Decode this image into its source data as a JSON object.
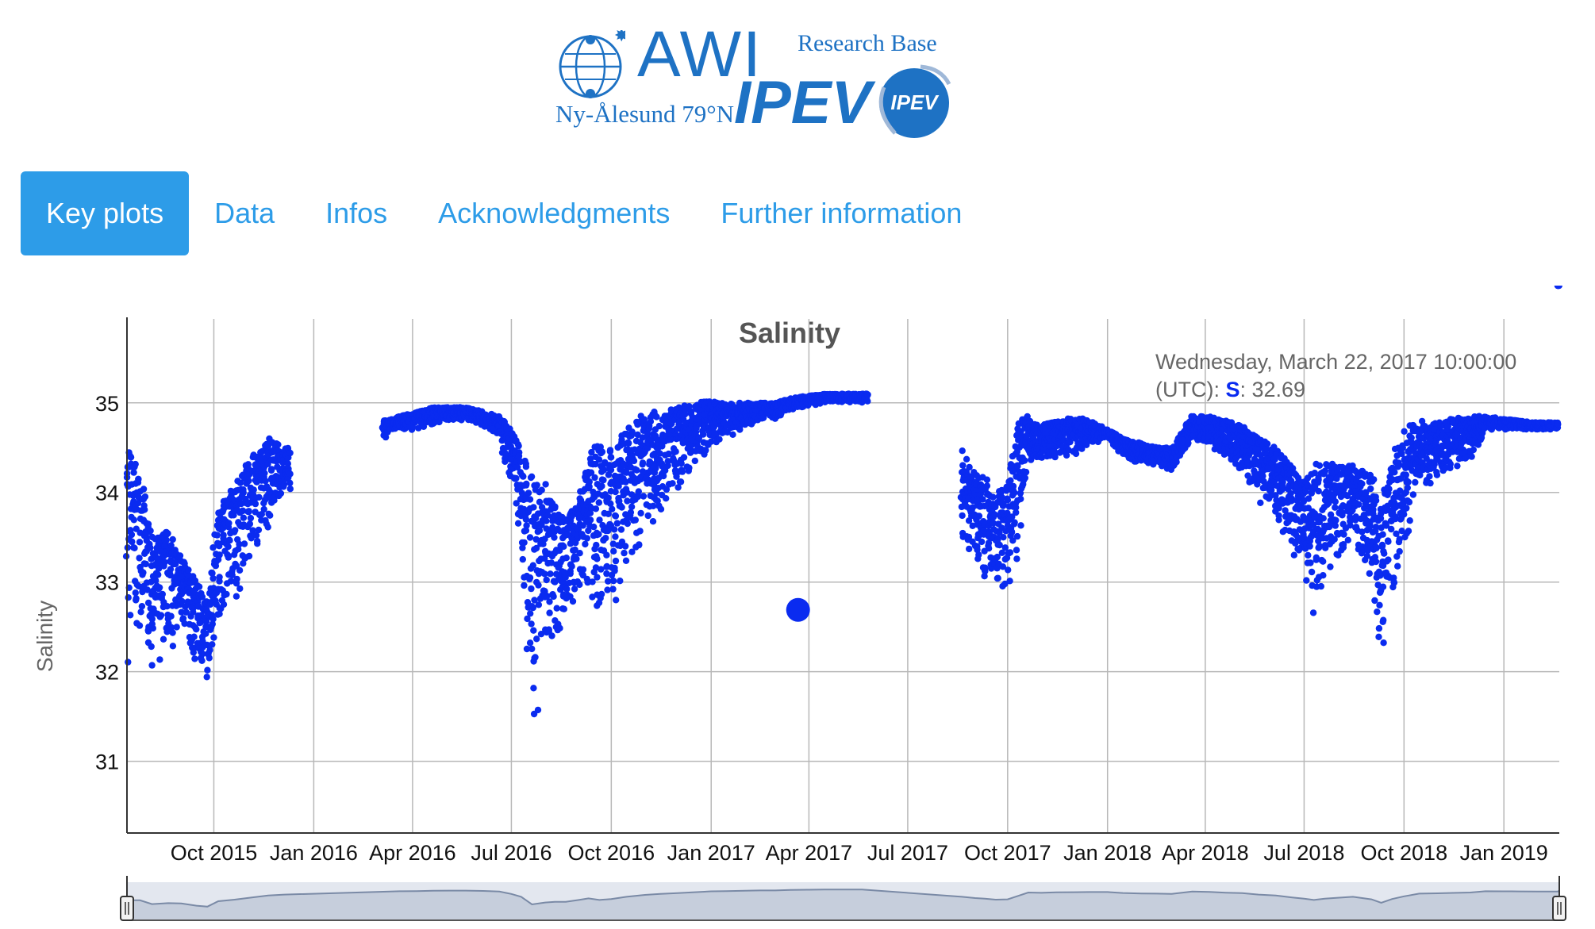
{
  "header": {
    "logo_awi": "AWI",
    "logo_ipev": "IPEV",
    "logo_research_base": "Research Base",
    "logo_location": "Ny-Ålesund 79°N",
    "badge_text": "IPEV",
    "brand_color": "#1e72c4"
  },
  "nav": {
    "tabs": [
      {
        "label": "Key plots",
        "active": true
      },
      {
        "label": "Data",
        "active": false
      },
      {
        "label": "Infos",
        "active": false
      },
      {
        "label": "Acknowledgments",
        "active": false
      },
      {
        "label": "Further information",
        "active": false
      }
    ],
    "accent": "#2d9ce8"
  },
  "tooltip": {
    "line1": "Wednesday, March 22, 2017 10:00:00",
    "line2_prefix": "(UTC): ",
    "series_label": "S",
    "line2_value": ": 32.69"
  },
  "chart_data": {
    "type": "scatter",
    "title": "Salinity",
    "xlabel": "",
    "ylabel": "Salinity",
    "ylim": [
      30.2,
      35.6
    ],
    "yticks": [
      31,
      32,
      33,
      34,
      35
    ],
    "xlim": [
      "2015-07-13",
      "2019-02-21"
    ],
    "xticks": [
      "Oct 2015",
      "Jan 2016",
      "Apr 2016",
      "Jul 2016",
      "Oct 2016",
      "Jan 2017",
      "Apr 2017",
      "Jul 2017",
      "Oct 2017",
      "Jan 2018",
      "Apr 2018",
      "Jul 2018",
      "Oct 2018",
      "Jan 2019"
    ],
    "xtick_dates": [
      "2015-10-01",
      "2016-01-01",
      "2016-04-01",
      "2016-07-01",
      "2016-10-01",
      "2017-01-01",
      "2017-04-01",
      "2017-07-01",
      "2017-10-01",
      "2018-01-01",
      "2018-04-01",
      "2018-07-01",
      "2018-10-01",
      "2019-01-01"
    ],
    "grid": true,
    "marker_color": "#0a2bf0",
    "highlight": {
      "x": "2017-03-22",
      "y": 32.69
    },
    "series": [
      {
        "values_summary": "daily salinity envelope (min/max per date)",
        "x": [
          "2015-07-13",
          "2015-07-25",
          "2015-08-05",
          "2015-08-20",
          "2015-09-01",
          "2015-09-15",
          "2015-09-25",
          "2015-10-05",
          "2015-10-20",
          "2015-11-05",
          "2015-11-20",
          "2015-12-05",
          "2016-03-05",
          "2016-03-20",
          "2016-04-05",
          "2016-04-20",
          "2016-05-05",
          "2016-05-20",
          "2016-06-05",
          "2016-06-20",
          "2016-07-01",
          "2016-07-10",
          "2016-07-20",
          "2016-08-01",
          "2016-08-10",
          "2016-08-20",
          "2016-09-01",
          "2016-09-10",
          "2016-09-20",
          "2016-10-01",
          "2016-10-15",
          "2016-11-01",
          "2016-11-15",
          "2016-12-01",
          "2016-12-15",
          "2017-01-01",
          "2017-01-15",
          "2017-02-01",
          "2017-02-15",
          "2017-03-01",
          "2017-03-15",
          "2017-04-01",
          "2017-04-15",
          "2017-05-01",
          "2017-05-20",
          "2017-08-20",
          "2017-09-01",
          "2017-09-10",
          "2017-09-20",
          "2017-10-01",
          "2017-10-10",
          "2017-10-20",
          "2017-11-01",
          "2017-11-15",
          "2017-12-01",
          "2017-12-15",
          "2018-01-01",
          "2018-01-15",
          "2018-02-01",
          "2018-02-15",
          "2018-03-01",
          "2018-03-20",
          "2018-04-05",
          "2018-04-20",
          "2018-05-05",
          "2018-05-20",
          "2018-06-05",
          "2018-06-20",
          "2018-07-01",
          "2018-07-10",
          "2018-07-20",
          "2018-08-01",
          "2018-08-15",
          "2018-09-01",
          "2018-09-10",
          "2018-09-20",
          "2018-10-01",
          "2018-10-15",
          "2018-11-01",
          "2018-11-15",
          "2018-12-01",
          "2018-12-15",
          "2019-01-01",
          "2019-01-15",
          "2019-02-01",
          "2019-02-20"
        ],
        "low": [
          32.1,
          32.5,
          32.0,
          32.2,
          32.4,
          32.0,
          31.9,
          32.6,
          32.8,
          33.2,
          33.6,
          34.0,
          34.6,
          34.7,
          34.7,
          34.75,
          34.8,
          34.8,
          34.75,
          34.6,
          34.0,
          33.3,
          31.2,
          31.9,
          32.3,
          32.5,
          32.9,
          32.9,
          32.2,
          32.6,
          33.1,
          33.5,
          33.8,
          34.0,
          34.2,
          34.5,
          34.6,
          34.7,
          34.8,
          34.8,
          34.9,
          34.95,
          35.0,
          35.0,
          35.0,
          33.3,
          33.2,
          33.0,
          32.9,
          32.9,
          33.2,
          34.3,
          34.3,
          34.4,
          34.4,
          34.5,
          34.6,
          34.4,
          34.3,
          34.3,
          34.2,
          34.6,
          34.5,
          34.3,
          34.2,
          33.9,
          33.7,
          33.3,
          33.1,
          32.5,
          32.8,
          33.2,
          33.5,
          32.8,
          32.1,
          32.6,
          33.2,
          34.0,
          34.1,
          34.2,
          34.3,
          34.7,
          34.7,
          34.7,
          34.7,
          34.7
        ],
        "high": [
          34.6,
          34.2,
          33.5,
          33.6,
          33.3,
          33.0,
          32.8,
          33.8,
          34.1,
          34.4,
          34.6,
          34.5,
          34.8,
          34.85,
          34.9,
          34.95,
          34.95,
          34.95,
          34.9,
          34.85,
          34.7,
          34.5,
          34.2,
          34.1,
          33.9,
          33.7,
          33.9,
          34.4,
          34.6,
          34.5,
          34.7,
          34.9,
          34.9,
          34.95,
          35.0,
          35.02,
          35.0,
          35.0,
          35.0,
          35.0,
          35.05,
          35.08,
          35.1,
          35.1,
          35.1,
          34.5,
          34.2,
          34.2,
          34.0,
          34.1,
          34.8,
          34.85,
          34.75,
          34.8,
          34.85,
          34.8,
          34.7,
          34.6,
          34.55,
          34.5,
          34.5,
          34.85,
          34.85,
          34.8,
          34.75,
          34.6,
          34.5,
          34.3,
          34.1,
          34.3,
          34.4,
          34.3,
          34.3,
          34.2,
          33.8,
          34.5,
          34.75,
          34.8,
          34.8,
          34.82,
          34.85,
          34.85,
          34.82,
          34.8,
          34.78,
          34.78
        ]
      }
    ]
  }
}
